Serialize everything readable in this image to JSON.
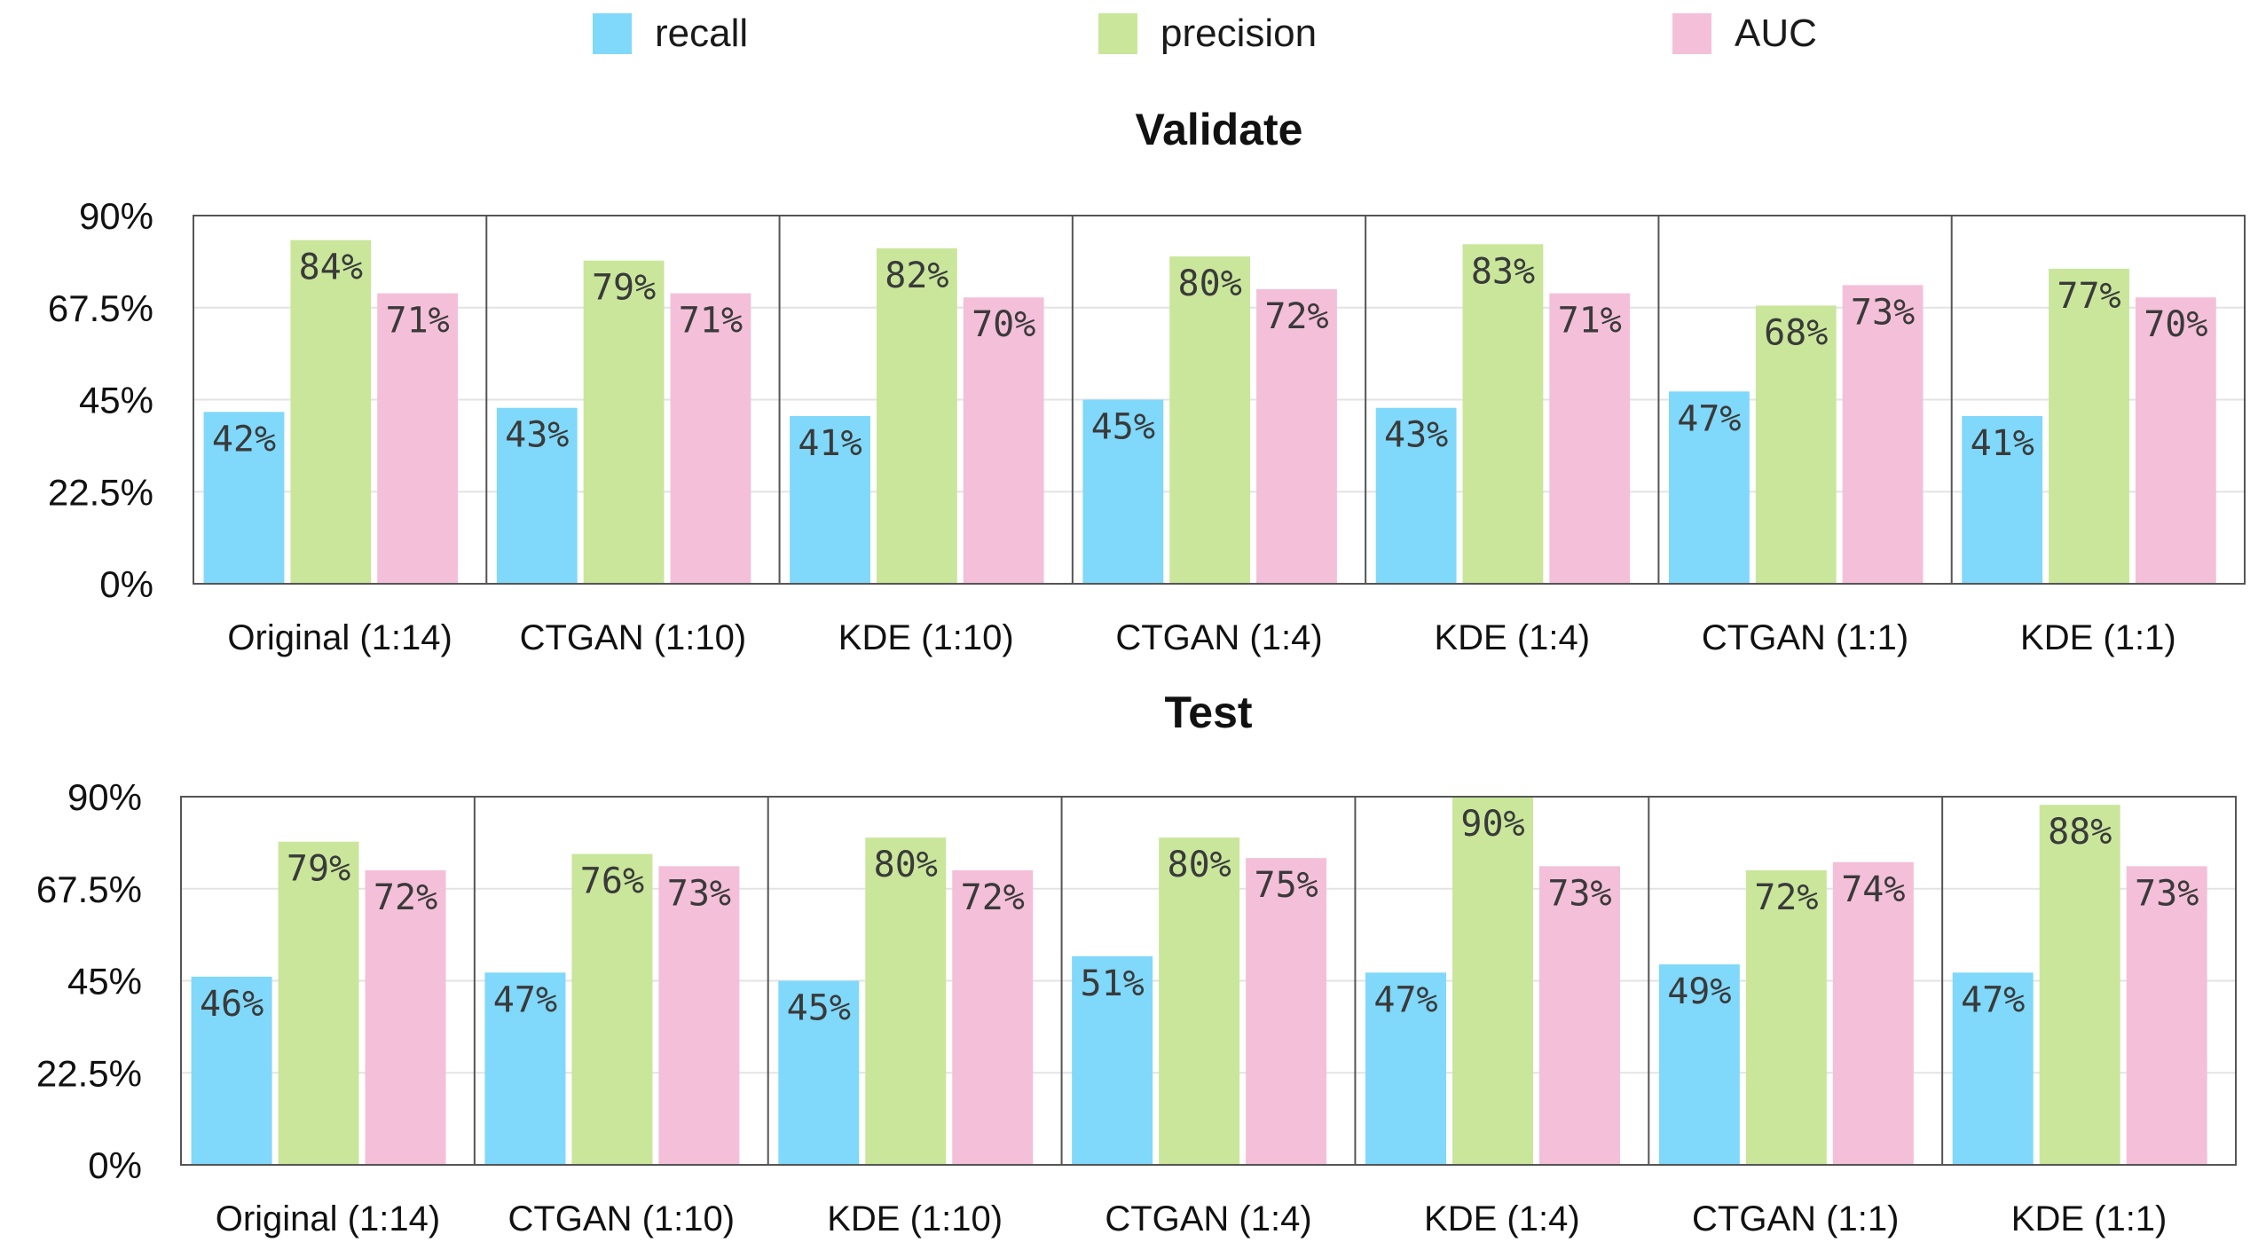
{
  "legend": [
    {
      "name": "recall",
      "color": "#80d8fa"
    },
    {
      "name": "precision",
      "color": "#c9e69b"
    },
    {
      "name": "AUC",
      "color": "#f4bfd9"
    }
  ],
  "chart_data": [
    {
      "type": "bar",
      "title": "Validate",
      "categories": [
        "Original (1:14)",
        "CTGAN (1:10)",
        "KDE (1:10)",
        "CTGAN (1:4)",
        "KDE (1:4)",
        "CTGAN (1:1)",
        "KDE (1:1)"
      ],
      "series": [
        {
          "name": "recall",
          "values": [
            42,
            43,
            41,
            45,
            43,
            47,
            41
          ],
          "labels": [
            "42%",
            "43%",
            "41%",
            "45%",
            "43%",
            "47%",
            "41%"
          ]
        },
        {
          "name": "precision",
          "values": [
            84,
            79,
            82,
            80,
            83,
            68,
            77
          ],
          "labels": [
            "84%",
            "79%",
            "82%",
            "80%",
            "83%",
            "68%",
            "77%"
          ]
        },
        {
          "name": "AUC",
          "values": [
            71,
            71,
            70,
            72,
            71,
            73,
            70
          ],
          "labels": [
            "71%",
            "71%",
            "70%",
            "72%",
            "71%",
            "73%",
            "70%"
          ]
        }
      ],
      "yticks": [
        "0%",
        "22.5%",
        "45%",
        "67.5%",
        "90%"
      ],
      "ylim": [
        0,
        90
      ],
      "xlabel": "",
      "ylabel": ""
    },
    {
      "type": "bar",
      "title": "Test",
      "categories": [
        "Original (1:14)",
        "CTGAN (1:10)",
        "KDE (1:10)",
        "CTGAN (1:4)",
        "KDE (1:4)",
        "CTGAN (1:1)",
        "KDE (1:1)"
      ],
      "series": [
        {
          "name": "recall",
          "values": [
            46,
            47,
            45,
            51,
            47,
            49,
            47
          ],
          "labels": [
            "46%",
            "47%",
            "45%",
            "51%",
            "47%",
            "49%",
            "47%"
          ]
        },
        {
          "name": "precision",
          "values": [
            79,
            76,
            80,
            80,
            90,
            72,
            88
          ],
          "labels": [
            "79%",
            "76%",
            "80%",
            "80%",
            "90%",
            "72%",
            "88%"
          ]
        },
        {
          "name": "AUC",
          "values": [
            72,
            73,
            72,
            75,
            73,
            74,
            73
          ],
          "labels": [
            "72%",
            "73%",
            "72%",
            "75%",
            "73%",
            "74%",
            "73%"
          ]
        }
      ],
      "yticks": [
        "0%",
        "22.5%",
        "45%",
        "67.5%",
        "90%"
      ],
      "ylim": [
        0,
        90
      ],
      "xlabel": "",
      "ylabel": ""
    }
  ]
}
